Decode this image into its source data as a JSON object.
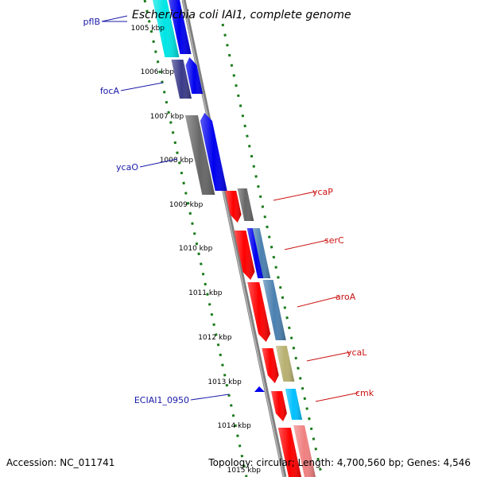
{
  "title": "Escherichia coli IAI1, complete genome",
  "footer": {
    "accession": "Accession: NC_011741",
    "summary": "Topology: circular; Length: 4,700,560 bp; Genes: 4,546"
  },
  "colors": {
    "backbone": "#7f7f7f",
    "tick": "#1a7a1a",
    "label_left": "#1a1aaa",
    "label_right": "#cc1111",
    "cds_red": "#ff0000",
    "blue": "#0000ee",
    "cyan": "#00e5e5",
    "navy": "#3a3a8a",
    "gray": "#666666",
    "steel": "#4a80b0",
    "olive": "#b8b070",
    "sky": "#00bfff",
    "pink": "#f08080"
  },
  "ticks": [
    "1005 kbp",
    "1006 kbp",
    "1007 kbp",
    "1008 kbp",
    "1009 kbp",
    "1010 kbp",
    "1011 kbp",
    "1012 kbp",
    "1013 kbp",
    "1014 kbp",
    "1015 kbp"
  ],
  "gene_labels": {
    "left": [
      "pflB",
      "focA",
      "ycaO",
      "ECIAI1_0950"
    ],
    "right": [
      "ycaP",
      "serC",
      "aroA",
      "ycaL",
      "cmk"
    ]
  }
}
